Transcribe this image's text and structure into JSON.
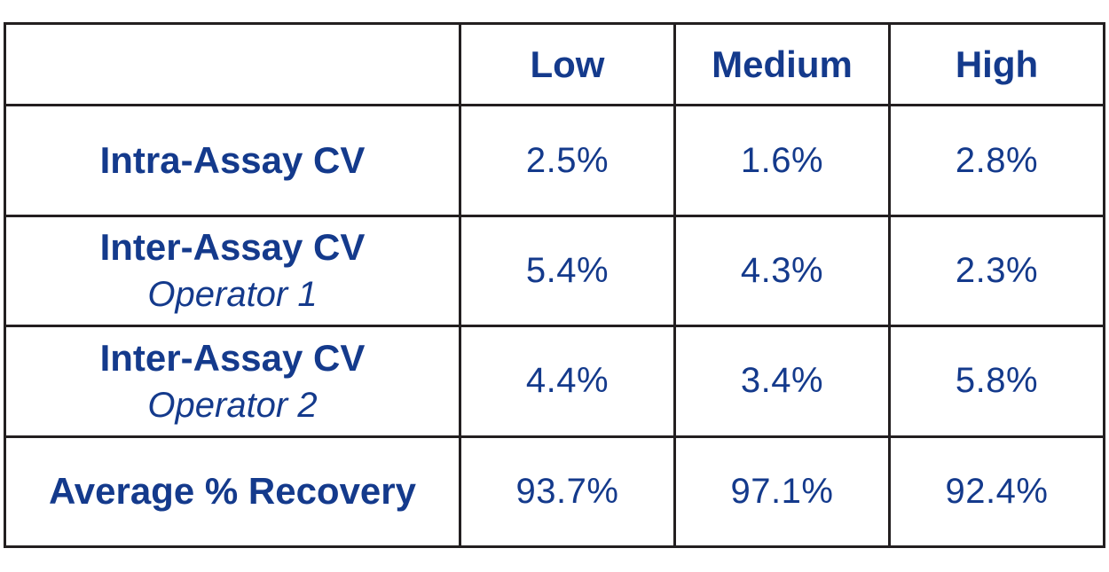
{
  "table": {
    "columns": [
      "",
      "Low",
      "Medium",
      "High"
    ],
    "rows": [
      {
        "label": "Intra-Assay CV",
        "sublabel": "",
        "values": [
          "2.5%",
          "1.6%",
          "2.8%"
        ]
      },
      {
        "label": "Inter-Assay CV",
        "sublabel": "Operator 1",
        "values": [
          "5.4%",
          "4.3%",
          "2.3%"
        ]
      },
      {
        "label": "Inter-Assay CV",
        "sublabel": "Operator 2",
        "values": [
          "4.4%",
          "3.4%",
          "5.8%"
        ]
      },
      {
        "label": "Average % Recovery",
        "sublabel": "",
        "values": [
          "93.7%",
          "97.1%",
          "92.4%"
        ]
      }
    ],
    "colors": {
      "text": "#143a8c",
      "border": "#231f20"
    }
  }
}
